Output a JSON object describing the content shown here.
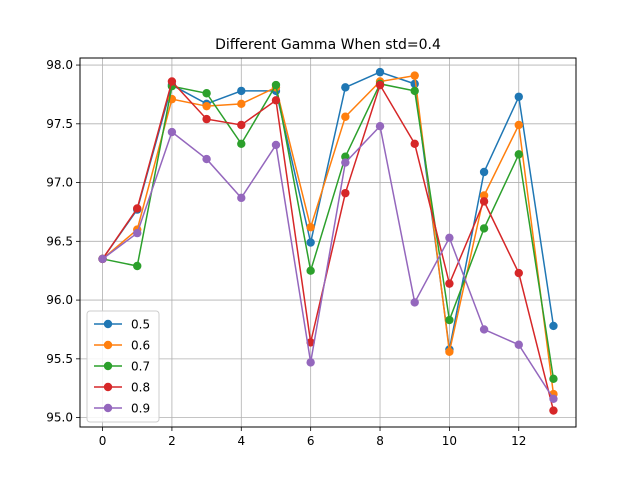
{
  "chart_data": {
    "type": "line",
    "title": "Different Gamma When std=0.4",
    "xlabel": "",
    "ylabel": "",
    "xlim": [
      -0.65,
      13.65
    ],
    "ylim": [
      94.92,
      98.06
    ],
    "xticks": [
      0,
      2,
      4,
      6,
      8,
      10,
      12
    ],
    "yticks": [
      95.0,
      95.5,
      96.0,
      96.5,
      97.0,
      97.5,
      98.0
    ],
    "grid": true,
    "legend_position": "lower-left",
    "x": [
      0,
      1,
      2,
      3,
      4,
      5,
      6,
      7,
      8,
      9,
      10,
      11,
      12,
      13
    ],
    "series": [
      {
        "name": "0.5",
        "color": "#1f77b4",
        "values": [
          96.35,
          96.77,
          97.83,
          97.67,
          97.78,
          97.78,
          96.49,
          97.81,
          97.94,
          97.84,
          95.58,
          97.09,
          97.73,
          95.78
        ]
      },
      {
        "name": "0.6",
        "color": "#ff7f0e",
        "values": [
          96.35,
          96.6,
          97.71,
          97.65,
          97.67,
          97.81,
          96.62,
          97.56,
          97.86,
          97.91,
          95.56,
          96.89,
          97.49,
          95.2
        ]
      },
      {
        "name": "0.7",
        "color": "#2ca02c",
        "values": [
          96.35,
          96.29,
          97.82,
          97.76,
          97.33,
          97.83,
          96.25,
          97.22,
          97.84,
          97.78,
          95.83,
          96.61,
          97.24,
          95.33
        ]
      },
      {
        "name": "0.8",
        "color": "#d62728",
        "values": [
          96.35,
          96.78,
          97.86,
          97.54,
          97.49,
          97.7,
          95.64,
          96.91,
          97.83,
          97.33,
          96.14,
          96.84,
          96.23,
          95.06
        ]
      },
      {
        "name": "0.9",
        "color": "#9467bd",
        "values": [
          96.35,
          96.57,
          97.43,
          97.2,
          96.87,
          97.32,
          95.47,
          97.17,
          97.48,
          95.98,
          96.53,
          95.75,
          95.62,
          95.16
        ]
      }
    ]
  }
}
